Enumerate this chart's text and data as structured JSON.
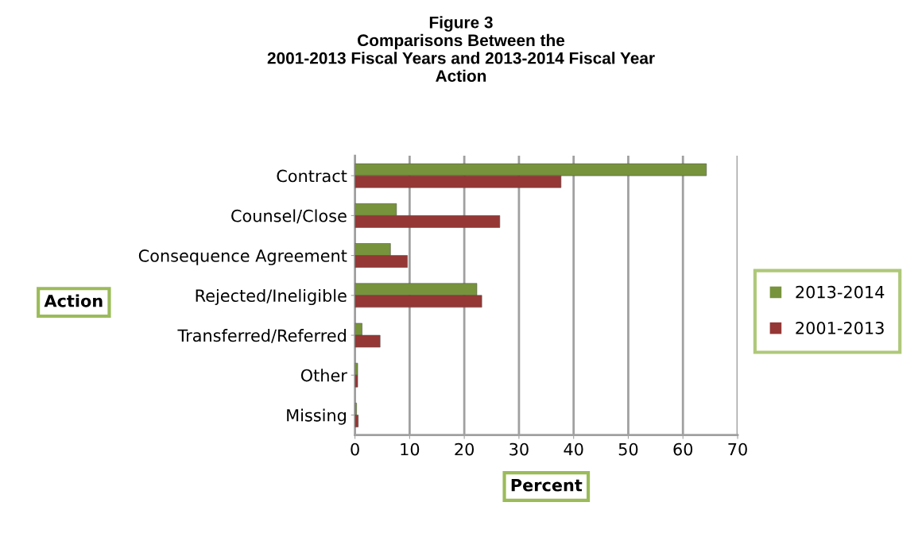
{
  "chart_data": {
    "type": "bar",
    "orientation": "horizontal",
    "title": "Figure 3\nComparisons Between the\n2001-2013 Fiscal Years and 2013-2014 Fiscal Year\nAction",
    "xlabel": "Percent",
    "ylabel": "Action",
    "categories": [
      "Contract",
      "Counsel/Close",
      "Consequence Agreement",
      "Rejected/Ineligible",
      "Transferred/Referred",
      "Other",
      "Missing"
    ],
    "series": [
      {
        "name": "2013-2014",
        "color": "#77933c",
        "values": [
          64.3,
          7.6,
          6.5,
          22.3,
          1.3,
          0.5,
          0.3
        ]
      },
      {
        "name": "2001-2013",
        "color": "#953735",
        "values": [
          37.7,
          26.5,
          9.6,
          23.2,
          4.6,
          0.5,
          0.6
        ]
      }
    ],
    "xlim": [
      0,
      70
    ],
    "xticks": [
      0,
      10,
      20,
      30,
      40,
      50,
      60,
      70
    ],
    "grid": "x",
    "legend": "right"
  }
}
